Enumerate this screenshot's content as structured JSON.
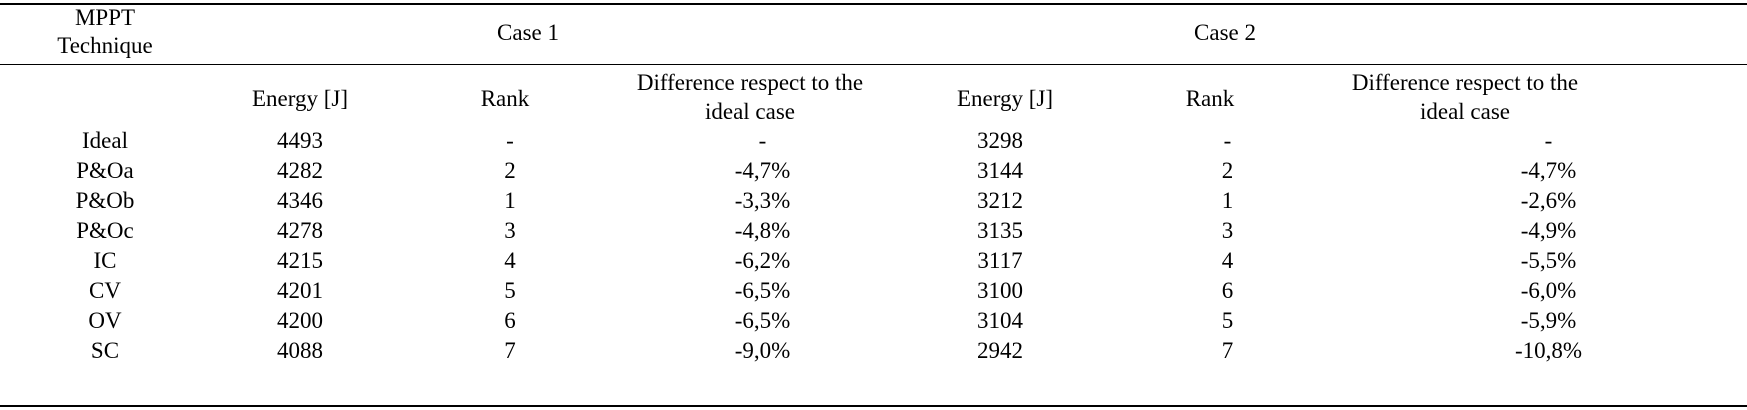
{
  "table": {
    "header": {
      "technique": "MPPT Technique",
      "case1": "Case 1",
      "case2": "Case 2",
      "energy": "Energy [J]",
      "rank": "Rank",
      "difference": "Difference respect to the ideal case"
    },
    "rows": [
      {
        "technique": "Ideal",
        "c1_energy": "4493",
        "c1_rank": "-",
        "c1_diff": "-",
        "c2_energy": "3298",
        "c2_rank": "-",
        "c2_diff": "-"
      },
      {
        "technique": "P&Oa",
        "c1_energy": "4282",
        "c1_rank": "2",
        "c1_diff": "-4,7%",
        "c2_energy": "3144",
        "c2_rank": "2",
        "c2_diff": "-4,7%"
      },
      {
        "technique": "P&Ob",
        "c1_energy": "4346",
        "c1_rank": "1",
        "c1_diff": "-3,3%",
        "c2_energy": "3212",
        "c2_rank": "1",
        "c2_diff": "-2,6%"
      },
      {
        "technique": "P&Oc",
        "c1_energy": "4278",
        "c1_rank": "3",
        "c1_diff": "-4,8%",
        "c2_energy": "3135",
        "c2_rank": "3",
        "c2_diff": "-4,9%"
      },
      {
        "technique": "IC",
        "c1_energy": "4215",
        "c1_rank": "4",
        "c1_diff": "-6,2%",
        "c2_energy": "3117",
        "c2_rank": "4",
        "c2_diff": "-5,5%"
      },
      {
        "technique": "CV",
        "c1_energy": "4201",
        "c1_rank": "5",
        "c1_diff": "-6,5%",
        "c2_energy": "3100",
        "c2_rank": "6",
        "c2_diff": "-6,0%"
      },
      {
        "technique": "OV",
        "c1_energy": "4200",
        "c1_rank": "6",
        "c1_diff": "-6,5%",
        "c2_energy": "3104",
        "c2_rank": "5",
        "c2_diff": "-5,9%"
      },
      {
        "technique": "SC",
        "c1_energy": "4088",
        "c1_rank": "7",
        "c1_diff": "-9,0%",
        "c2_energy": "2942",
        "c2_rank": "7",
        "c2_diff": "-10,8%"
      }
    ]
  }
}
